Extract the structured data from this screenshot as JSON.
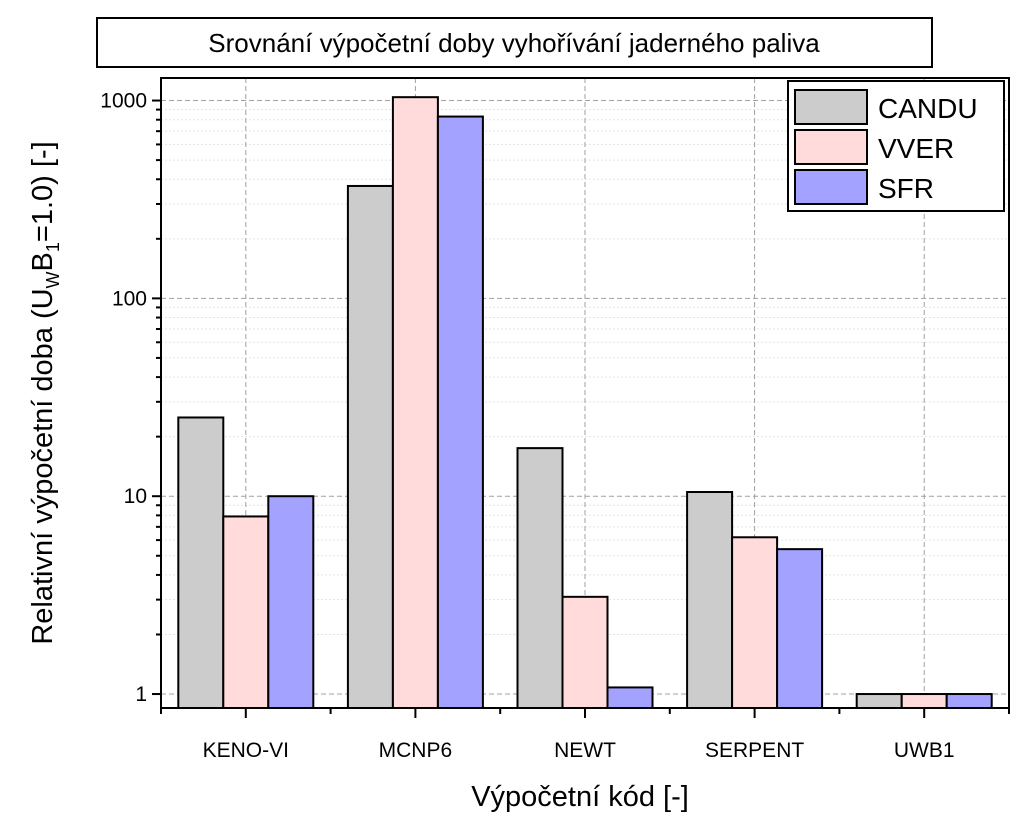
{
  "chart_data": {
    "type": "bar",
    "title": "Srovnání výpočetní doby vyhořívání jaderného paliva",
    "xlabel": "Výpočetní kód [-]",
    "ylabel": {
      "prefix": "Relativní výpočetní doba (U",
      "sub1": "W",
      "mid": "B",
      "sub2": "1",
      "suffix": "=1.0) [-]"
    },
    "yscale": "log",
    "ylim": [
      0.85,
      1300
    ],
    "yticks": [
      1,
      10,
      100,
      1000
    ],
    "ytick_labels": [
      "1",
      "10",
      "100",
      "1000"
    ],
    "grid": true,
    "legend_position": "top-right",
    "categories": [
      "KENO-VI",
      "MCNP6",
      "NEWT",
      "SERPENT",
      "UWB1"
    ],
    "series": [
      {
        "name": "CANDU",
        "color": "#cccccc",
        "values": [
          25,
          370,
          17.5,
          10.5,
          1.0
        ]
      },
      {
        "name": "VVER",
        "color": "#ffdbdb",
        "values": [
          7.9,
          1040,
          3.1,
          6.2,
          1.0
        ]
      },
      {
        "name": "SFR",
        "color": "#a3a3ff",
        "values": [
          10,
          830,
          1.08,
          5.4,
          1.0
        ]
      }
    ]
  }
}
